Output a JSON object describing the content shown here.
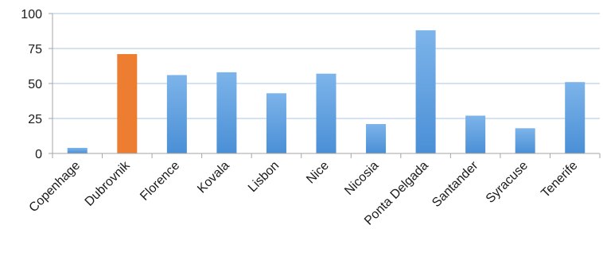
{
  "chart_data": {
    "type": "bar",
    "categories": [
      "Copenhage",
      "Dubrovnik",
      "Florence",
      "Kovala",
      "Lisbon",
      "Nice",
      "Nicosia",
      "Ponta Delgada",
      "Santander",
      "Syracuse",
      "Tenerife"
    ],
    "values": [
      4,
      71,
      56,
      58,
      43,
      57,
      21,
      88,
      27,
      18,
      51
    ],
    "highlight_index": 1,
    "ylim": [
      0,
      100
    ],
    "yticks": [
      0,
      25,
      50,
      75,
      100
    ],
    "title": "",
    "xlabel": "",
    "ylabel": "",
    "grid": true,
    "legend": "none",
    "colors": {
      "bar": "#4a8fd6",
      "bar_light": "#7db4ea",
      "highlight": "#ed7d31",
      "gridline": "#a9c4e4",
      "axis": "#a6a6a6"
    }
  }
}
